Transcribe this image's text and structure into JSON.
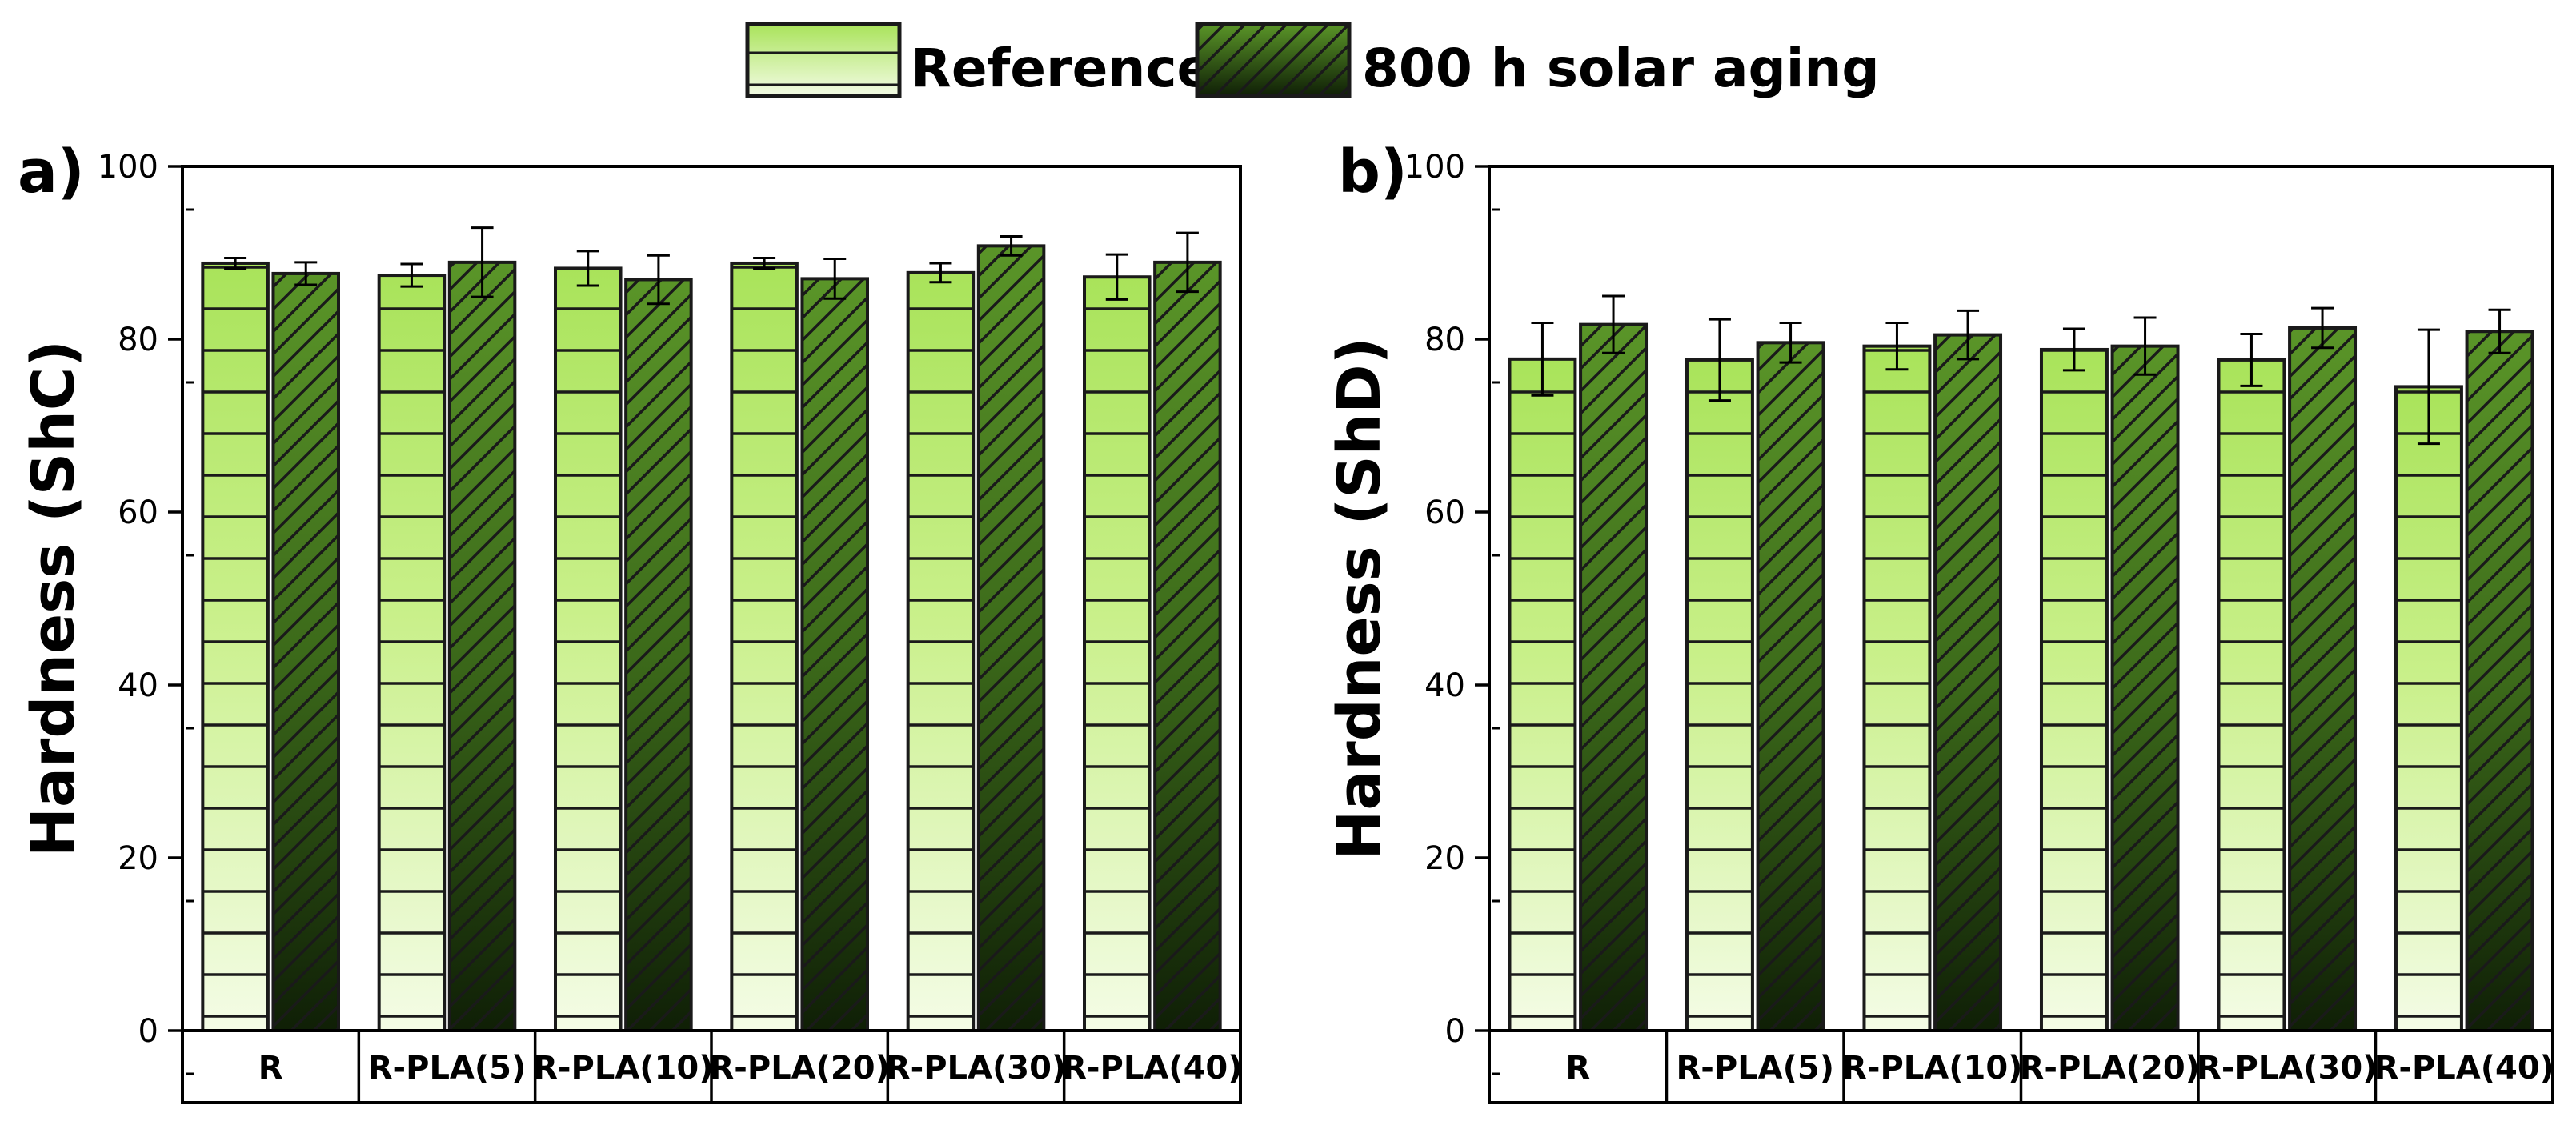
{
  "legend": {
    "reference_label": "Reference",
    "aged_label": "800 h solar aging"
  },
  "colors": {
    "reference_light": "#f4fce6",
    "reference_mid": "#c9f08a",
    "reference_dark": "#a9e35a",
    "aged_dark": "#0f1f06",
    "aged_mid": "#3c6a1a",
    "aged_light": "#5a9528",
    "stripe": "#1a1a1a"
  },
  "chart_data": [
    {
      "panel_label": "a)",
      "type": "bar",
      "ylabel": "Hardness (ShC)",
      "ylim": [
        0,
        100
      ],
      "yticks": [
        "0",
        "20",
        "40",
        "60",
        "80",
        "100"
      ],
      "categories": [
        "R",
        "R-PLA(5)",
        "R-PLA(10)",
        "R-PLA(20)",
        "R-PLA(30)",
        "R-PLA(40)"
      ],
      "series": [
        {
          "name": "Reference",
          "values": [
            88.8,
            87.4,
            88.2,
            88.8,
            87.7,
            87.2
          ],
          "errors": [
            0.6,
            1.3,
            2.0,
            0.6,
            1.1,
            2.6
          ]
        },
        {
          "name": "800 h solar aging",
          "values": [
            87.6,
            88.9,
            86.9,
            87.0,
            90.8,
            88.9
          ],
          "errors": [
            1.3,
            4.0,
            2.8,
            2.3,
            1.1,
            3.4
          ]
        }
      ]
    },
    {
      "panel_label": "b)",
      "type": "bar",
      "ylabel": "Hardness (ShD)",
      "ylim": [
        0,
        100
      ],
      "yticks": [
        "0",
        "20",
        "40",
        "60",
        "80",
        "100"
      ],
      "categories": [
        "R",
        "R-PLA(5)",
        "R-PLA(10)",
        "R-PLA(20)",
        "R-PLA(30)",
        "R-PLA(40)"
      ],
      "series": [
        {
          "name": "Reference",
          "values": [
            77.7,
            77.6,
            79.2,
            78.8,
            77.6,
            74.5
          ],
          "errors": [
            4.2,
            4.7,
            2.7,
            2.4,
            3.0,
            6.6
          ]
        },
        {
          "name": "800 h solar aging",
          "values": [
            81.7,
            79.6,
            80.5,
            79.2,
            81.3,
            80.9
          ],
          "errors": [
            3.3,
            2.3,
            2.8,
            3.3,
            2.3,
            2.5
          ]
        }
      ]
    }
  ]
}
